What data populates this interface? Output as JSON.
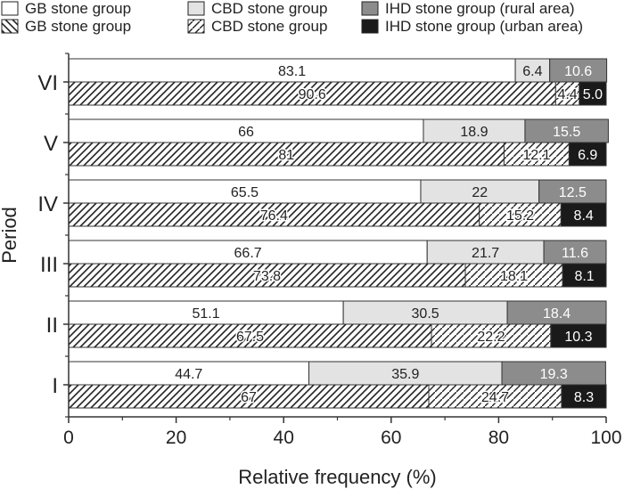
{
  "chart_data": {
    "type": "bar",
    "orientation": "horizontal",
    "stacked": true,
    "ylabel": "Period",
    "xlabel": "Relative frequency (%)",
    "xlim": [
      0,
      100
    ],
    "xticks": [
      "0",
      "20",
      "40",
      "60",
      "80",
      "100"
    ],
    "categories": [
      "VI",
      "V",
      "IV",
      "III",
      "II",
      "I"
    ],
    "legend": {
      "placement": "top",
      "entries": [
        {
          "label": "GB stone group",
          "swatch": "white"
        },
        {
          "label": "CBD stone group",
          "swatch": "light-gray"
        },
        {
          "label": "IHD stone group (rural area)",
          "swatch": "dark-gray"
        },
        {
          "label": "GB stone group",
          "swatch": "hatched"
        },
        {
          "label": "CBD stone group",
          "swatch": "hatched-light"
        },
        {
          "label": "IHD stone group (urban area)",
          "swatch": "black"
        }
      ]
    },
    "rural_series": [
      {
        "name": "GB stone group",
        "values": [
          83.1,
          66,
          65.5,
          66.7,
          51.1,
          44.7
        ],
        "labels": [
          "83.1",
          "66",
          "65.5",
          "66.7",
          "51.1",
          "44.7"
        ]
      },
      {
        "name": "CBD stone group",
        "values": [
          6.4,
          18.9,
          22,
          21.7,
          30.5,
          35.9
        ],
        "labels": [
          "6.4",
          "18.9",
          "22",
          "21.7",
          "30.5",
          "35.9"
        ]
      },
      {
        "name": "IHD stone group (rural area)",
        "values": [
          10.6,
          15.5,
          12.5,
          11.6,
          18.4,
          19.3
        ],
        "labels": [
          "10.6",
          "15.5",
          "12.5",
          "11.6",
          "18.4",
          "19.3"
        ]
      }
    ],
    "urban_series": [
      {
        "name": "GB stone group",
        "values": [
          90.6,
          81,
          76.4,
          73.8,
          67.5,
          67
        ],
        "labels": [
          "90.6",
          "81",
          "76.4",
          "73.8",
          "67.5",
          "67"
        ]
      },
      {
        "name": "CBD stone group",
        "values": [
          4.4,
          12.1,
          15.2,
          18.1,
          22.2,
          24.7
        ],
        "labels": [
          "4.4",
          "12.1",
          "15.2",
          "18.1",
          "22.2",
          "24.7"
        ]
      },
      {
        "name": "IHD stone group (urban area)",
        "values": [
          5.0,
          6.9,
          8.4,
          8.1,
          10.3,
          8.3
        ],
        "labels": [
          "5.0",
          "6.9",
          "8.4",
          "8.1",
          "10.3",
          "8.3"
        ]
      }
    ],
    "colors": {
      "rural_gb": "#ffffff",
      "rural_cbd": "#e3e3e3",
      "rural_ihd": "#8c8c8c",
      "urban_ihd": "#1a1a1a",
      "hatch": "#222222",
      "axis": "#333333"
    }
  }
}
